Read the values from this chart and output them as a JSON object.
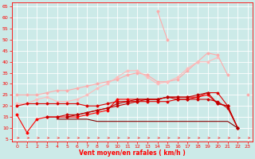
{
  "x": [
    0,
    1,
    2,
    3,
    4,
    5,
    6,
    7,
    8,
    9,
    10,
    11,
    12,
    13,
    14,
    15,
    16,
    17,
    18,
    19,
    20,
    21,
    22,
    23
  ],
  "lines": [
    {
      "y": [
        null,
        null,
        null,
        null,
        null,
        null,
        null,
        null,
        null,
        null,
        null,
        null,
        null,
        null,
        63,
        50,
        null,
        null,
        null,
        null,
        null,
        null,
        null,
        null
      ],
      "color": "#ffaaaa",
      "lw": 0.8,
      "marker": "D",
      "ms": 1.5
    },
    {
      "y": [
        25,
        25,
        25,
        26,
        27,
        27,
        28,
        29,
        30,
        31,
        32,
        34,
        35,
        34,
        31,
        31,
        32,
        36,
        40,
        44,
        43,
        34,
        null,
        25
      ],
      "color": "#ffaaaa",
      "lw": 0.8,
      "marker": "D",
      "ms": 1.5
    },
    {
      "y": [
        21,
        21,
        23,
        24,
        22,
        22,
        23,
        25,
        28,
        30,
        33,
        36,
        36,
        33,
        30,
        31,
        33,
        37,
        40,
        40,
        42,
        null,
        null,
        null
      ],
      "color": "#ffbbbb",
      "lw": 0.8,
      "marker": "D",
      "ms": 1.5
    },
    {
      "y": [
        16,
        8,
        14,
        15,
        15,
        15,
        15,
        16,
        17,
        18,
        23,
        23,
        23,
        23,
        23,
        24,
        24,
        24,
        24,
        25,
        21,
        20,
        10,
        null
      ],
      "color": "#ff0000",
      "lw": 0.8,
      "marker": "D",
      "ms": 1.5
    },
    {
      "y": [
        20,
        21,
        21,
        21,
        21,
        21,
        21,
        20,
        20,
        21,
        22,
        22,
        22,
        22,
        22,
        22,
        23,
        23,
        24,
        26,
        26,
        20,
        null,
        null
      ],
      "color": "#dd0000",
      "lw": 0.8,
      "marker": "D",
      "ms": 1.5
    },
    {
      "y": [
        null,
        null,
        null,
        15,
        15,
        16,
        16,
        17,
        18,
        19,
        20,
        21,
        22,
        23,
        23,
        24,
        23,
        23,
        23,
        23,
        22,
        19,
        10,
        null
      ],
      "color": "#cc0000",
      "lw": 0.8,
      "marker": "D",
      "ms": 1.5
    },
    {
      "y": [
        null,
        null,
        null,
        null,
        null,
        15,
        16,
        17,
        18,
        19,
        21,
        22,
        23,
        23,
        23,
        24,
        24,
        24,
        25,
        26,
        21,
        20,
        10,
        null
      ],
      "color": "#bb0000",
      "lw": 0.8,
      "marker": "D",
      "ms": 1.5
    },
    {
      "y": [
        null,
        null,
        null,
        null,
        14,
        14,
        14,
        14,
        13,
        13,
        13,
        13,
        13,
        13,
        13,
        13,
        13,
        13,
        13,
        13,
        13,
        13,
        10,
        null
      ],
      "color": "#880000",
      "lw": 0.8,
      "marker": null,
      "ms": 0
    }
  ],
  "xlim": [
    -0.5,
    23.5
  ],
  "ylim": [
    4,
    67
  ],
  "yticks": [
    5,
    10,
    15,
    20,
    25,
    30,
    35,
    40,
    45,
    50,
    55,
    60,
    65
  ],
  "xticks": [
    0,
    1,
    2,
    3,
    4,
    5,
    6,
    7,
    8,
    9,
    10,
    11,
    12,
    13,
    14,
    15,
    16,
    17,
    18,
    19,
    20,
    21,
    22,
    23
  ],
  "xlabel": "Vent moyen/en rafales ( km/h )",
  "bg_color": "#cceae8",
  "grid_color": "#ffffff",
  "tick_color": "#ff0000",
  "label_color": "#ff0000"
}
